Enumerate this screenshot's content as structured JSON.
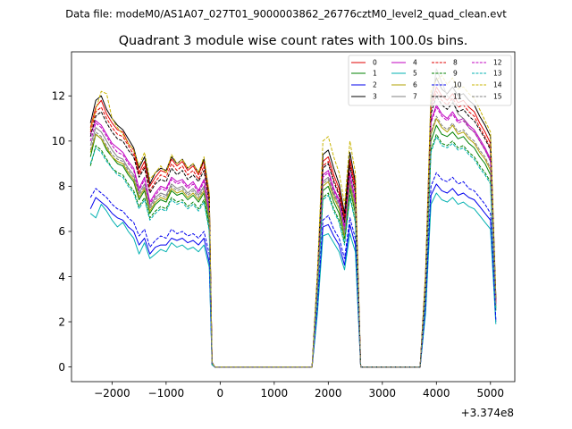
{
  "suptitle": "Data file: modeM0/AS1A07_027T01_9000003862_26776cztM0_level2_quad_clean.evt",
  "chart_data": {
    "type": "line",
    "title": "Quadrant 3 module wise count rates with 100.0s bins.",
    "xlabel": "",
    "ylabel": "",
    "offset_label": "+3.374e8",
    "xlim": [
      -2750,
      5450
    ],
    "ylim": [
      -0.65,
      13.95
    ],
    "xticks": [
      -2000,
      -1000,
      0,
      1000,
      2000,
      3000,
      4000,
      5000
    ],
    "xtick_labels": [
      "−2000",
      "−1000",
      "0",
      "1000",
      "2000",
      "3000",
      "4000",
      "5000"
    ],
    "yticks": [
      0,
      2,
      4,
      6,
      8,
      10,
      12
    ],
    "ytick_labels": [
      "0",
      "2",
      "4",
      "6",
      "8",
      "10",
      "12"
    ],
    "grid": false,
    "legend_position": "top-right",
    "x": [
      -2400,
      -2300,
      -2200,
      -2100,
      -2000,
      -1900,
      -1800,
      -1700,
      -1600,
      -1500,
      -1400,
      -1300,
      -1200,
      -1100,
      -1000,
      -900,
      -800,
      -700,
      -600,
      -500,
      -400,
      -300,
      -200,
      -150,
      -100,
      0,
      1000,
      1700,
      1800,
      1900,
      2000,
      2100,
      2200,
      2300,
      2400,
      2500,
      2600,
      3700,
      3800,
      3900,
      4000,
      4100,
      4200,
      4300,
      4400,
      4500,
      4600,
      4700,
      4800,
      4900,
      5000,
      5100
    ],
    "series": [
      {
        "name": "0",
        "color": "#e00000",
        "dash": "solid",
        "values": [
          10.6,
          11.5,
          11.8,
          11.2,
          10.8,
          10.5,
          10.4,
          9.9,
          9.6,
          8.6,
          9.1,
          8.0,
          8.4,
          8.7,
          8.6,
          9.2,
          8.9,
          9.1,
          8.7,
          8.9,
          8.5,
          9.1,
          7.5,
          0.2,
          0.0,
          0.0,
          0.0,
          0.0,
          4.0,
          9.1,
          9.3,
          8.5,
          7.9,
          6.6,
          9.2,
          8.0,
          0.0,
          0.0,
          4.0,
          11.6,
          12.4,
          12.0,
          11.8,
          12.1,
          11.7,
          11.8,
          11.5,
          11.3,
          10.8,
          10.4,
          9.9,
          3.0
        ]
      },
      {
        "name": "1",
        "color": "#008000",
        "dash": "solid",
        "values": [
          9.3,
          10.3,
          10.1,
          9.6,
          9.3,
          9.0,
          8.9,
          8.5,
          8.2,
          7.4,
          7.8,
          6.8,
          7.2,
          7.4,
          7.3,
          7.8,
          7.6,
          7.7,
          7.4,
          7.6,
          7.3,
          7.7,
          6.3,
          0.2,
          0.0,
          0.0,
          0.0,
          0.0,
          3.4,
          7.8,
          8.0,
          7.3,
          6.8,
          5.7,
          7.9,
          6.8,
          0.0,
          0.0,
          3.4,
          10.0,
          10.7,
          10.3,
          10.2,
          10.4,
          10.1,
          10.2,
          9.9,
          9.7,
          9.3,
          9.0,
          8.5,
          2.6
        ]
      },
      {
        "name": "2",
        "color": "#0000ee",
        "dash": "solid",
        "values": [
          7.0,
          7.5,
          7.3,
          7.1,
          6.8,
          6.6,
          6.5,
          6.2,
          6.0,
          5.4,
          5.7,
          5.0,
          5.3,
          5.4,
          5.4,
          5.7,
          5.6,
          5.7,
          5.5,
          5.6,
          5.4,
          5.7,
          4.6,
          0.1,
          0.0,
          0.0,
          0.0,
          0.0,
          2.5,
          6.2,
          6.3,
          5.8,
          5.4,
          4.5,
          6.3,
          5.4,
          0.0,
          0.0,
          2.6,
          7.6,
          8.1,
          7.8,
          7.7,
          7.9,
          7.6,
          7.7,
          7.5,
          7.4,
          7.1,
          6.8,
          6.5,
          2.0
        ]
      },
      {
        "name": "3",
        "color": "#000000",
        "dash": "solid",
        "values": [
          10.8,
          11.8,
          12.0,
          11.4,
          11.0,
          10.7,
          10.5,
          10.1,
          9.7,
          8.8,
          9.3,
          8.1,
          8.6,
          8.8,
          8.7,
          9.3,
          9.0,
          9.2,
          8.8,
          9.0,
          8.6,
          9.2,
          7.6,
          0.2,
          0.0,
          0.0,
          0.0,
          0.0,
          4.1,
          9.4,
          9.6,
          8.8,
          8.1,
          6.8,
          9.5,
          8.2,
          0.0,
          0.0,
          4.1,
          11.9,
          12.8,
          12.3,
          12.1,
          12.4,
          12.0,
          12.1,
          11.8,
          11.6,
          11.1,
          10.7,
          10.2,
          3.1
        ]
      },
      {
        "name": "4",
        "color": "#c000c0",
        "dash": "solid",
        "values": [
          10.3,
          10.9,
          10.7,
          10.3,
          9.9,
          9.7,
          9.5,
          9.1,
          8.8,
          7.9,
          8.4,
          7.3,
          7.7,
          8.0,
          7.9,
          8.4,
          8.2,
          8.3,
          8.0,
          8.2,
          7.8,
          8.3,
          6.9,
          0.2,
          0.0,
          0.0,
          0.0,
          0.0,
          3.7,
          8.5,
          8.7,
          7.9,
          7.4,
          6.2,
          8.6,
          7.4,
          0.0,
          0.0,
          3.7,
          10.9,
          11.6,
          11.2,
          11.0,
          11.3,
          10.9,
          11.0,
          10.7,
          10.5,
          10.1,
          9.7,
          9.2,
          2.8
        ]
      },
      {
        "name": "5",
        "color": "#00b0b0",
        "dash": "solid",
        "values": [
          6.8,
          6.6,
          7.2,
          6.9,
          6.5,
          6.2,
          6.4,
          6.0,
          5.7,
          5.0,
          5.5,
          4.8,
          5.0,
          5.2,
          5.1,
          5.5,
          5.3,
          5.4,
          5.2,
          5.3,
          5.1,
          5.4,
          4.4,
          0.1,
          0.0,
          0.0,
          0.0,
          0.0,
          2.4,
          5.8,
          5.9,
          5.5,
          5.1,
          4.3,
          5.9,
          5.1,
          0.0,
          0.0,
          2.4,
          7.2,
          7.7,
          7.4,
          7.3,
          7.5,
          7.2,
          7.3,
          7.1,
          7.0,
          6.7,
          6.4,
          6.1,
          1.9
        ]
      },
      {
        "name": "6",
        "color": "#b0a000",
        "dash": "solid",
        "values": [
          9.5,
          10.3,
          10.1,
          9.7,
          9.3,
          9.1,
          9.0,
          8.6,
          8.3,
          7.5,
          7.9,
          6.9,
          7.3,
          7.5,
          7.4,
          7.9,
          7.7,
          7.8,
          7.5,
          7.7,
          7.4,
          7.8,
          6.5,
          0.2,
          0.0,
          0.0,
          0.0,
          0.0,
          3.5,
          8.0,
          8.2,
          7.5,
          7.0,
          5.8,
          8.1,
          7.0,
          0.0,
          0.0,
          3.5,
          10.3,
          11.0,
          10.6,
          10.4,
          10.7,
          10.3,
          10.4,
          10.1,
          9.9,
          9.5,
          9.2,
          8.7,
          2.7
        ]
      },
      {
        "name": "7",
        "color": "#808080",
        "dash": "solid",
        "values": [
          9.8,
          10.6,
          10.4,
          10.0,
          9.6,
          9.3,
          9.2,
          8.8,
          8.5,
          7.7,
          8.1,
          7.1,
          7.5,
          7.7,
          7.6,
          8.1,
          7.9,
          8.0,
          7.7,
          7.9,
          7.6,
          8.0,
          6.7,
          0.2,
          0.0,
          0.0,
          0.0,
          0.0,
          3.6,
          8.2,
          8.4,
          7.7,
          7.2,
          6.0,
          8.3,
          7.2,
          0.0,
          0.0,
          3.6,
          11.5,
          13.2,
          12.6,
          12.0,
          11.8,
          11.2,
          11.0,
          10.6,
          10.4,
          10.0,
          9.6,
          9.1,
          2.8
        ]
      },
      {
        "name": "8",
        "color": "#e00000",
        "dash": "dashed",
        "values": [
          10.4,
          11.3,
          11.5,
          11.0,
          10.6,
          10.3,
          10.2,
          9.8,
          9.4,
          8.5,
          8.9,
          7.8,
          8.2,
          8.5,
          8.4,
          9.0,
          8.7,
          8.9,
          8.5,
          8.7,
          8.3,
          8.9,
          7.3,
          0.2,
          0.0,
          0.0,
          0.0,
          0.0,
          3.9,
          8.9,
          9.1,
          8.3,
          7.7,
          6.5,
          9.0,
          7.8,
          0.0,
          0.0,
          3.9,
          11.4,
          12.2,
          11.8,
          11.6,
          11.9,
          11.5,
          11.6,
          11.3,
          11.1,
          10.6,
          10.2,
          9.7,
          2.9
        ]
      },
      {
        "name": "9",
        "color": "#008000",
        "dash": "dashed",
        "values": [
          8.9,
          9.8,
          9.6,
          9.2,
          8.8,
          8.6,
          8.5,
          8.1,
          7.8,
          7.1,
          7.5,
          6.6,
          6.9,
          7.1,
          7.0,
          7.5,
          7.3,
          7.4,
          7.1,
          7.3,
          7.0,
          7.4,
          6.1,
          0.1,
          0.0,
          0.0,
          0.0,
          0.0,
          3.3,
          7.5,
          7.7,
          7.0,
          6.5,
          5.5,
          7.6,
          6.5,
          0.0,
          0.0,
          3.3,
          9.6,
          10.3,
          9.9,
          9.8,
          10.0,
          9.7,
          9.8,
          9.5,
          9.3,
          8.9,
          8.6,
          8.2,
          2.5
        ]
      },
      {
        "name": "10",
        "color": "#0000ee",
        "dash": "dashed",
        "values": [
          7.5,
          7.9,
          7.7,
          7.5,
          7.2,
          7.0,
          6.9,
          6.6,
          6.4,
          5.8,
          6.1,
          5.3,
          5.6,
          5.8,
          5.7,
          6.1,
          5.9,
          6.0,
          5.8,
          5.9,
          5.7,
          6.0,
          5.0,
          0.1,
          0.0,
          0.0,
          0.0,
          0.0,
          2.7,
          6.5,
          6.7,
          6.1,
          5.7,
          4.8,
          6.6,
          5.7,
          0.0,
          0.0,
          2.7,
          8.0,
          8.6,
          8.3,
          8.2,
          8.4,
          8.1,
          8.2,
          7.9,
          7.8,
          7.5,
          7.2,
          6.8,
          2.1
        ]
      },
      {
        "name": "11",
        "color": "#000000",
        "dash": "dashed",
        "values": [
          10.2,
          11.1,
          11.3,
          10.8,
          10.4,
          10.1,
          10.0,
          9.6,
          9.3,
          8.4,
          8.8,
          7.7,
          8.1,
          8.3,
          8.2,
          8.8,
          8.5,
          8.7,
          8.3,
          8.5,
          8.2,
          8.7,
          7.2,
          0.2,
          0.0,
          0.0,
          0.0,
          0.0,
          3.9,
          8.8,
          9.0,
          8.2,
          7.6,
          6.4,
          8.9,
          7.7,
          0.0,
          0.0,
          3.9,
          11.2,
          12.0,
          11.6,
          11.4,
          11.7,
          11.3,
          11.4,
          11.1,
          10.9,
          10.5,
          10.1,
          9.6,
          2.9
        ]
      },
      {
        "name": "12",
        "color": "#c000c0",
        "dash": "dashed",
        "values": [
          10.0,
          10.8,
          10.6,
          10.2,
          9.8,
          9.5,
          9.4,
          9.0,
          8.7,
          7.8,
          8.3,
          7.2,
          7.6,
          7.9,
          7.8,
          8.3,
          8.1,
          8.2,
          7.9,
          8.1,
          7.7,
          8.2,
          6.8,
          0.2,
          0.0,
          0.0,
          0.0,
          0.0,
          3.6,
          8.4,
          8.6,
          7.8,
          7.3,
          6.1,
          8.5,
          7.3,
          0.0,
          0.0,
          3.6,
          10.8,
          11.5,
          11.1,
          10.9,
          11.2,
          10.8,
          10.9,
          10.6,
          10.4,
          10.0,
          9.6,
          9.1,
          2.8
        ]
      },
      {
        "name": "13",
        "color": "#00b0b0",
        "dash": "dashed",
        "values": [
          9.0,
          9.7,
          9.5,
          9.1,
          8.8,
          8.5,
          8.4,
          8.0,
          7.7,
          7.0,
          7.4,
          6.5,
          6.8,
          7.0,
          6.9,
          7.4,
          7.2,
          7.3,
          7.0,
          7.2,
          6.9,
          7.3,
          6.0,
          0.1,
          0.0,
          0.0,
          0.0,
          0.0,
          3.2,
          7.4,
          7.6,
          6.9,
          6.4,
          5.4,
          7.5,
          6.4,
          0.0,
          0.0,
          3.2,
          9.5,
          10.2,
          9.8,
          9.7,
          9.9,
          9.6,
          9.7,
          9.4,
          9.2,
          8.8,
          8.5,
          8.1,
          2.5
        ]
      },
      {
        "name": "14",
        "color": "#c8b400",
        "dash": "dashed",
        "values": [
          10.5,
          11.4,
          12.2,
          12.1,
          11.0,
          10.6,
          10.3,
          9.9,
          9.6,
          8.9,
          9.5,
          8.3,
          8.6,
          8.9,
          8.6,
          9.4,
          9.0,
          9.2,
          8.8,
          9.0,
          8.6,
          9.3,
          7.7,
          0.2,
          0.0,
          0.0,
          0.0,
          0.0,
          4.2,
          10.0,
          10.2,
          9.3,
          8.6,
          7.2,
          10.0,
          8.6,
          0.0,
          0.0,
          4.2,
          12.2,
          12.7,
          12.9,
          12.5,
          12.8,
          12.3,
          12.4,
          12.1,
          11.9,
          11.4,
          10.9,
          10.4,
          3.1
        ]
      },
      {
        "name": "15",
        "color": "#808080",
        "dash": "dashed",
        "values": [
          9.6,
          10.4,
          10.2,
          9.8,
          9.4,
          9.2,
          9.1,
          8.7,
          8.4,
          7.6,
          8.0,
          7.0,
          7.4,
          7.6,
          7.5,
          8.0,
          7.8,
          7.9,
          7.6,
          7.8,
          7.5,
          7.9,
          6.6,
          0.2,
          0.0,
          0.0,
          0.0,
          0.0,
          3.5,
          8.1,
          8.3,
          7.6,
          7.1,
          5.9,
          8.2,
          7.1,
          0.0,
          0.0,
          3.5,
          10.4,
          11.1,
          10.7,
          10.5,
          10.8,
          10.4,
          10.5,
          10.2,
          10.0,
          9.6,
          9.3,
          8.8,
          2.7
        ]
      }
    ]
  }
}
